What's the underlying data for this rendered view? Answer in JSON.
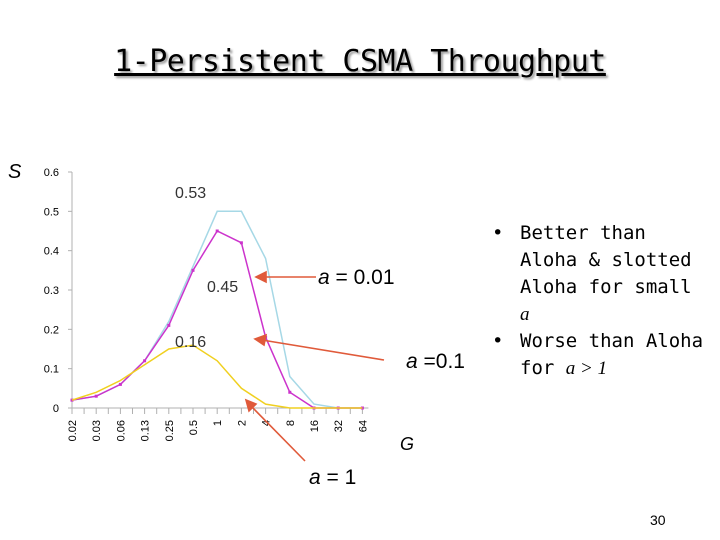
{
  "slide": {
    "title": "1-Persistent CSMA Throughput",
    "number": "30"
  },
  "bullets": [
    {
      "text": "Better than Aloha & slotted Aloha for small ",
      "var": "a"
    },
    {
      "text": "Worse than Aloha for ",
      "var": "a > 1"
    }
  ],
  "chart_data": {
    "type": "line",
    "ylabel": "S",
    "xlabel": "G",
    "categories": [
      "0.02",
      "0.03",
      "0.06",
      "0.13",
      "0.25",
      "0.5",
      "1",
      "2",
      "4",
      "8",
      "16",
      "32",
      "64"
    ],
    "ylim": [
      0,
      0.6
    ],
    "yticks": [
      "0.6",
      "0.5",
      "0.4",
      "0.3",
      "0.2",
      "0.1",
      "0"
    ],
    "grid": false,
    "series": [
      {
        "color": "#a6d8e6",
        "values": [
          0.02,
          0.03,
          0.06,
          0.12,
          0.22,
          0.36,
          0.5,
          0.5,
          0.38,
          0.08,
          0.01,
          0.0,
          0.0
        ]
      },
      {
        "color": "#cc33cc",
        "values": [
          0.02,
          0.03,
          0.06,
          0.12,
          0.21,
          0.35,
          0.45,
          0.42,
          0.18,
          0.04,
          0.0,
          0.0,
          0.0
        ]
      },
      {
        "color": "#f0d020",
        "values": [
          0.02,
          0.04,
          0.07,
          0.11,
          0.15,
          0.16,
          0.12,
          0.05,
          0.01,
          0.0,
          0.0,
          0.0,
          0.0
        ]
      }
    ],
    "annotations": {
      "peaks": [
        "0.53",
        "0.45",
        "0.16"
      ],
      "a_labels": [
        {
          "prefix": "a",
          "value": "= 0.01"
        },
        {
          "prefix": "a",
          "value": "=0.1"
        },
        {
          "prefix": "a",
          "value": "= 1"
        }
      ]
    }
  }
}
